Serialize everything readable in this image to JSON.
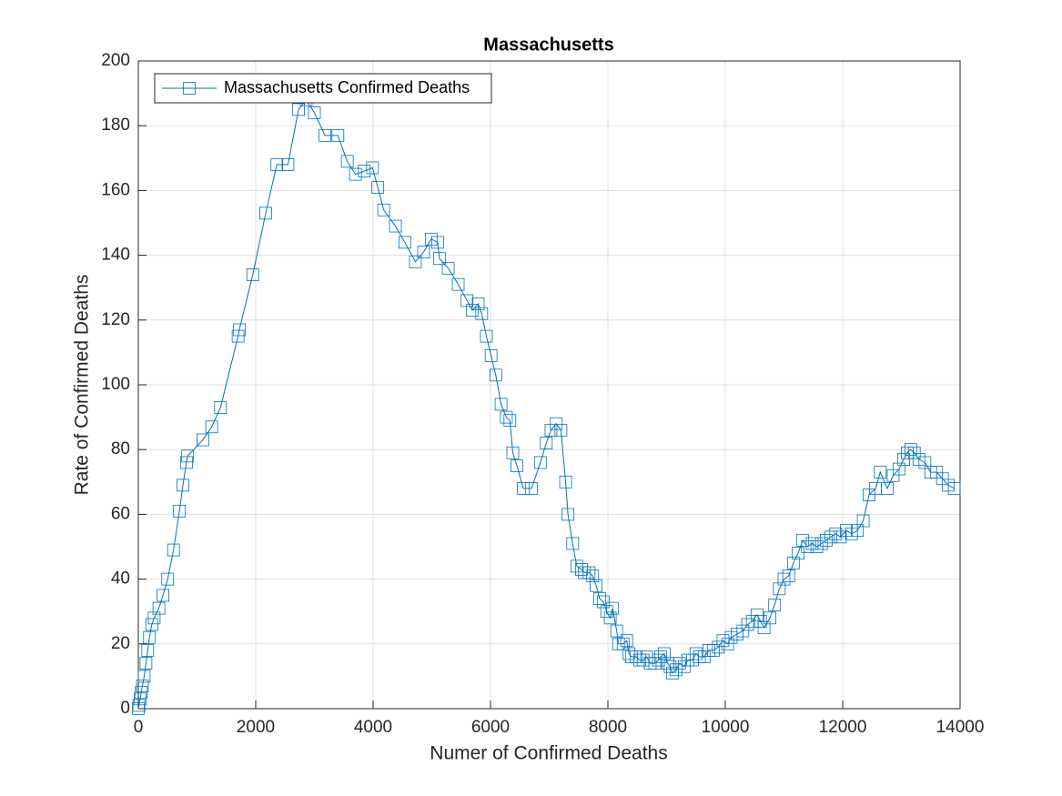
{
  "chart_data": {
    "type": "line",
    "title": "Massachusetts",
    "xlabel": "Numer of Confirmed Deaths",
    "ylabel": "Rate of Confirmed Deaths",
    "x": [
      0,
      10,
      30,
      50,
      70,
      100,
      130,
      160,
      190,
      230,
      270,
      350,
      420,
      500,
      600,
      700,
      760,
      820,
      840,
      1100,
      1250,
      1400,
      1700,
      1720,
      1950,
      2170,
      2360,
      2550,
      2730,
      2860,
      3000,
      3180,
      3400,
      3560,
      3700,
      3850,
      3990,
      4080,
      4180,
      4380,
      4540,
      4720,
      4860,
      4990,
      5100,
      5130,
      5280,
      5450,
      5600,
      5690,
      5790,
      5850,
      5930,
      6010,
      6090,
      6180,
      6270,
      6330,
      6380,
      6450,
      6560,
      6700,
      6850,
      6950,
      7030,
      7120,
      7200,
      7280,
      7320,
      7400,
      7470,
      7550,
      7600,
      7680,
      7740,
      7800,
      7860,
      7920,
      7980,
      8040,
      8080,
      8150,
      8180,
      8260,
      8320,
      8360,
      8400,
      8480,
      8540,
      8600,
      8660,
      8720,
      8800,
      8860,
      8900,
      8960,
      9020,
      9060,
      9100,
      9160,
      9220,
      9300,
      9360,
      9440,
      9500,
      9560,
      9640,
      9720,
      9800,
      9880,
      9960,
      10040,
      10100,
      10200,
      10300,
      10380,
      10460,
      10540,
      10600,
      10660,
      10760,
      10840,
      10920,
      11000,
      11080,
      11160,
      11240,
      11320,
      11400,
      11480,
      11560,
      11640,
      11720,
      11800,
      11880,
      11960,
      12060,
      12150,
      12250,
      12350,
      12450,
      12560,
      12640,
      12760,
      12860,
      12960,
      13040,
      13100,
      13160,
      13220,
      13300,
      13400,
      13500,
      13600,
      13700,
      13800,
      13900
    ],
    "series": [
      {
        "name": "Massachusetts Confirmed Deaths",
        "color": "#0072bd",
        "marker": "square",
        "values": [
          0,
          1,
          3,
          5,
          7,
          10,
          14,
          18,
          22,
          26,
          28,
          31,
          35,
          40,
          49,
          61,
          69,
          76,
          78,
          83,
          87,
          93,
          115,
          117,
          134,
          153,
          168,
          168,
          185,
          188,
          184,
          177,
          177,
          169,
          165,
          166,
          167,
          161,
          154,
          149,
          144,
          138,
          141,
          145,
          144,
          139,
          136,
          131,
          126,
          123,
          125,
          122,
          115,
          109,
          103,
          94,
          90,
          89,
          79,
          75,
          68,
          68,
          76,
          82,
          86,
          88,
          86,
          70,
          60,
          51,
          44,
          43,
          42,
          42,
          41,
          38,
          34,
          33,
          30,
          28,
          31,
          24,
          20,
          20,
          21,
          17,
          16,
          16,
          15,
          15,
          16,
          14,
          14,
          15,
          16,
          17,
          14,
          13,
          11,
          12,
          14,
          13,
          15,
          15,
          17,
          16,
          16,
          18,
          18,
          19,
          21,
          20,
          22,
          23,
          24,
          26,
          27,
          29,
          27,
          25,
          28,
          32,
          37,
          40,
          41,
          45,
          48,
          52,
          50,
          51,
          50,
          51,
          52,
          53,
          54,
          53,
          55,
          54,
          55,
          58,
          66,
          68,
          73,
          68,
          72,
          74,
          77,
          79,
          80,
          79,
          77,
          76,
          73,
          73,
          71,
          69,
          68
        ]
      }
    ],
    "xlim": [
      0,
      14000
    ],
    "xticks": [
      0,
      2000,
      4000,
      6000,
      8000,
      10000,
      12000,
      14000
    ],
    "ylim": [
      0,
      200
    ],
    "yticks": [
      0,
      20,
      40,
      60,
      80,
      100,
      120,
      140,
      160,
      180,
      200
    ],
    "grid": true,
    "legend": "upper left"
  }
}
